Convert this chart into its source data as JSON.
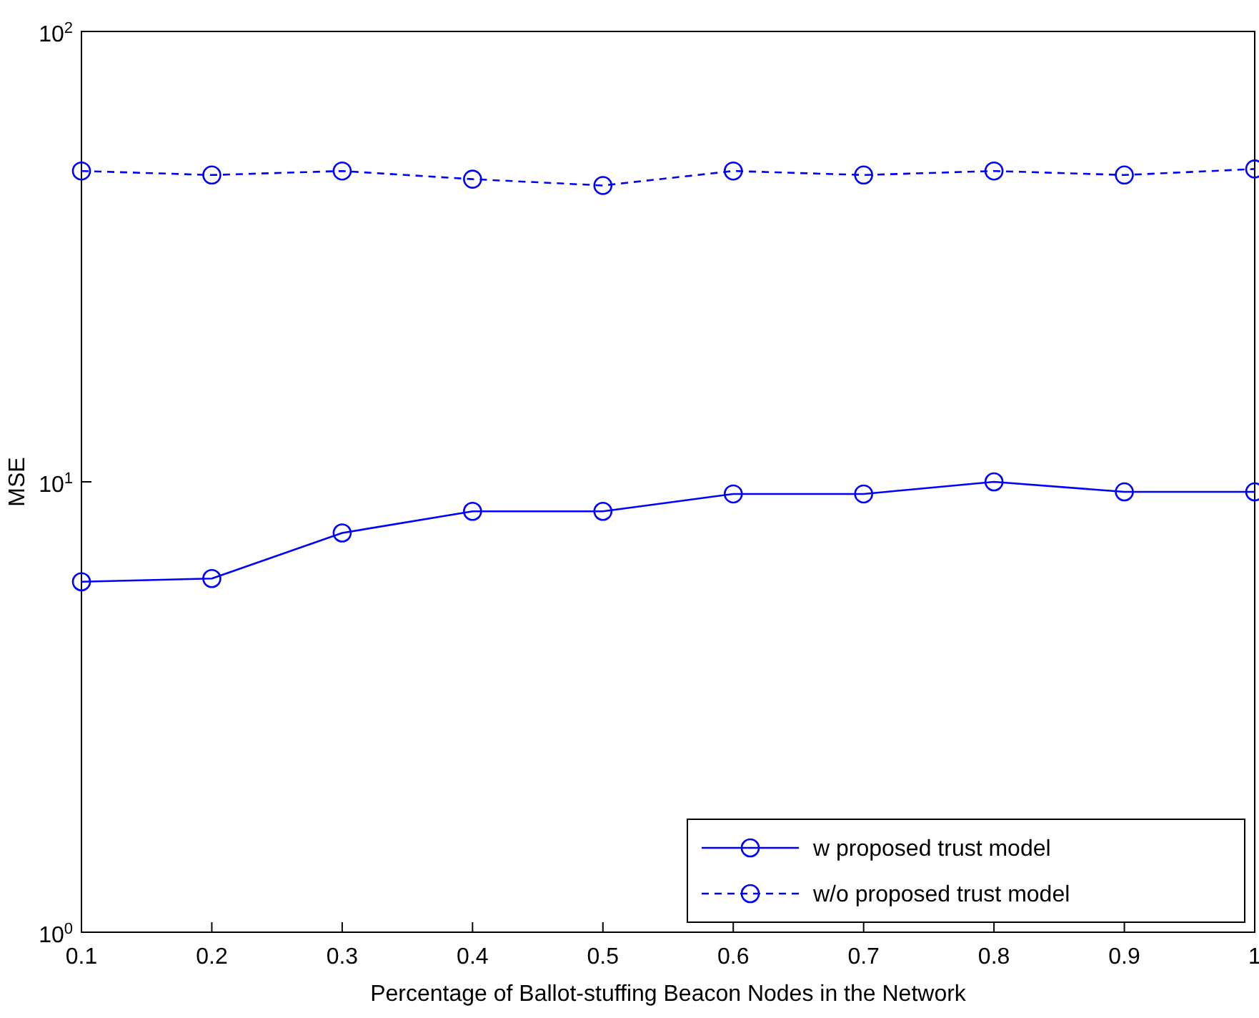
{
  "chart_data": {
    "type": "line",
    "xlabel": "Percentage of Ballot-stuffing Beacon Nodes in the Network",
    "ylabel": "MSE",
    "x": [
      0.1,
      0.2,
      0.3,
      0.4,
      0.5,
      0.6,
      0.7,
      0.8,
      0.9,
      1
    ],
    "series": [
      {
        "name": "w proposed trust model",
        "color": "#0000ff",
        "line_style": "solid",
        "values": [
          6.0,
          6.1,
          7.7,
          8.6,
          8.6,
          9.4,
          9.4,
          10,
          9.5,
          9.5
        ]
      },
      {
        "name": "w/o proposed trust model",
        "color": "#0000ff",
        "line_style": "dashed",
        "values": [
          49,
          48,
          49,
          47,
          45.5,
          49,
          48,
          49,
          48,
          49.5
        ]
      }
    ],
    "xlim": [
      0.1,
      1
    ],
    "xticks": [
      0.1,
      0.2,
      0.3,
      0.4,
      0.5,
      0.6,
      0.7,
      0.8,
      0.9,
      1
    ],
    "ylim": [
      1,
      100
    ],
    "yticks": [
      {
        "value": 1,
        "label": "10$^{0}$"
      },
      {
        "value": 10,
        "label": "10$^{1}$"
      },
      {
        "value": 100,
        "label": "10$^{2}$"
      }
    ],
    "log": "y",
    "grid": false,
    "legend": "bottom right",
    "marker": "circle"
  }
}
